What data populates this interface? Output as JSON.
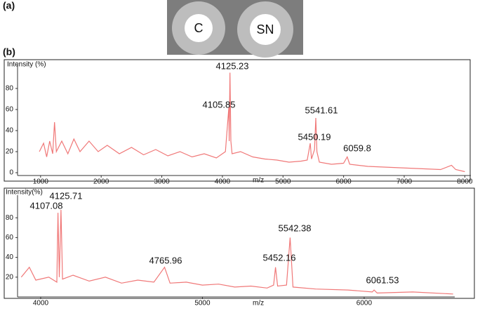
{
  "panel_a": {
    "label": "(a)",
    "spots": [
      "C",
      "SN"
    ]
  },
  "panel_b": {
    "label": "(b)"
  },
  "chart_data": [
    {
      "type": "line",
      "ylabel": "Intensity (%)",
      "xlabel": "m/z",
      "xlim": [
        620,
        8100
      ],
      "ylim": [
        0,
        100
      ],
      "xticks": [
        1000,
        2000,
        3000,
        4000,
        5000,
        6000,
        7000,
        8000
      ],
      "yticks": [
        0,
        20,
        40,
        60,
        80
      ],
      "series": [
        {
          "color": "#f07878",
          "x": [
            980,
            1050,
            1100,
            1150,
            1200,
            1230,
            1260,
            1350,
            1450,
            1550,
            1650,
            1800,
            1950,
            2100,
            2300,
            2500,
            2700,
            2900,
            3100,
            3300,
            3500,
            3700,
            3900,
            4050,
            4106,
            4112,
            4125,
            4140,
            4160,
            4300,
            4500,
            4700,
            4900,
            5100,
            5300,
            5400,
            5450,
            5470,
            5520,
            5541,
            5560,
            5600,
            5800,
            6000,
            6060,
            6100,
            6400,
            6800,
            7200,
            7600,
            7780,
            7850,
            8000
          ],
          "values": [
            20,
            28,
            15,
            30,
            18,
            48,
            20,
            30,
            18,
            32,
            20,
            30,
            20,
            26,
            18,
            24,
            17,
            22,
            16,
            20,
            15,
            18,
            14,
            20,
            62,
            30,
            95,
            30,
            18,
            20,
            15,
            13,
            12,
            10,
            11,
            12,
            28,
            13,
            22,
            52,
            20,
            10,
            8,
            9,
            15,
            8,
            6,
            5,
            4,
            3,
            7,
            3,
            1
          ]
        }
      ],
      "annotations": [
        {
          "label": "4125.23",
          "x": 4125.23,
          "y": 95
        },
        {
          "label": "4105.85",
          "x": 4105.85,
          "y": 62
        },
        {
          "label": "5541.61",
          "x": 5541.61,
          "y": 52
        },
        {
          "label": "5450.19",
          "x": 5450.19,
          "y": 28
        },
        {
          "label": "6059.8",
          "x": 6059.8,
          "y": 15
        }
      ]
    },
    {
      "type": "line",
      "ylabel": "Intensity(%)",
      "xlabel": "m/z",
      "xlim": [
        3857,
        6560
      ],
      "ylim": [
        0,
        100
      ],
      "xticks": [
        4000,
        5000,
        6000
      ],
      "yticks": [
        20,
        40,
        60,
        80
      ],
      "series": [
        {
          "color": "#f07878",
          "x": [
            3880,
            3930,
            3970,
            4050,
            4100,
            4107,
            4115,
            4125.7,
            4135,
            4200,
            4300,
            4400,
            4500,
            4600,
            4700,
            4766,
            4800,
            4900,
            5000,
            5100,
            5200,
            5300,
            5400,
            5440,
            5452,
            5465,
            5520,
            5542,
            5560,
            5700,
            5900,
            6050,
            6061.5,
            6080,
            6300,
            6550
          ],
          "values": [
            20,
            30,
            17,
            20,
            15,
            85,
            20,
            88,
            18,
            22,
            16,
            20,
            14,
            17,
            15,
            30,
            14,
            15,
            12,
            13,
            10,
            11,
            9,
            12,
            30,
            11,
            12,
            60,
            10,
            8,
            7,
            5,
            7,
            4,
            5,
            3
          ]
        }
      ],
      "annotations": [
        {
          "label": "4125.71",
          "x": 4125.71,
          "y": 88
        },
        {
          "label": "4107.08",
          "x": 4107.08,
          "y": 85
        },
        {
          "label": "4765.96",
          "x": 4765.96,
          "y": 30
        },
        {
          "label": "5452.16",
          "x": 5452.16,
          "y": 30
        },
        {
          "label": "5542.38",
          "x": 5542.38,
          "y": 60
        },
        {
          "label": "6061.53",
          "x": 6061.53,
          "y": 7
        }
      ]
    }
  ]
}
